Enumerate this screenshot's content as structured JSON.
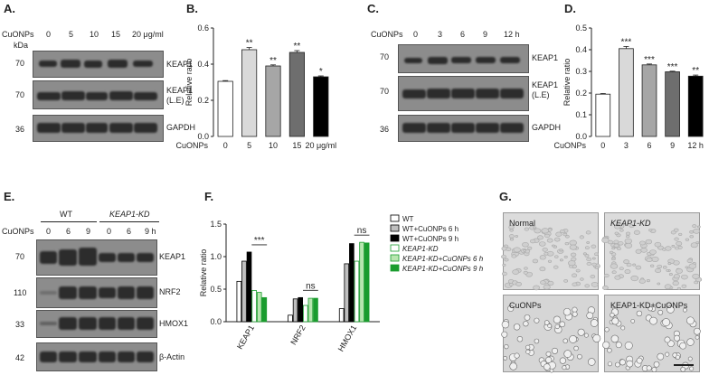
{
  "panels": {
    "A": {
      "label": "A.",
      "treatment": "CuONPs",
      "doses": [
        "0",
        "5",
        "10",
        "15",
        "20 μg/ml"
      ],
      "kda_unit": "kDa",
      "blots": [
        {
          "marker": "70",
          "name": "KEAP1"
        },
        {
          "marker": "70",
          "name": "KEAP1 (L.E)"
        },
        {
          "marker": "36",
          "name": "GAPDH"
        }
      ]
    },
    "B": {
      "label": "B."
    },
    "C": {
      "label": "C.",
      "treatment": "CuONPs",
      "doses": [
        "0",
        "3",
        "6",
        "9",
        "12 h"
      ],
      "blots": [
        {
          "marker": "70",
          "name": "KEAP1"
        },
        {
          "marker": "70",
          "name": "KEAP1 (L.E)"
        },
        {
          "marker": "36",
          "name": "GAPDH"
        }
      ]
    },
    "D": {
      "label": "D."
    },
    "E": {
      "label": "E.",
      "groups": [
        "WT",
        "KEAP1-KD"
      ],
      "treatment": "CuONPs",
      "doses": [
        "0",
        "6",
        "9",
        "0",
        "6",
        "9 h"
      ],
      "blots": [
        {
          "marker": "70",
          "name": "KEAP1"
        },
        {
          "marker": "110",
          "name": "NRF2"
        },
        {
          "marker": "33",
          "name": "HMOX1"
        },
        {
          "marker": "42",
          "name": "β-Actin"
        }
      ]
    },
    "F": {
      "label": "F."
    },
    "G": {
      "label": "G.",
      "images": [
        "Normal",
        "KEAP1-KD",
        "CuONPs",
        "KEAP1-KD+CuONPs"
      ]
    }
  },
  "chart_data": [
    {
      "panel": "B",
      "type": "bar",
      "categories": [
        "0",
        "5",
        "10",
        "15",
        "20 μg/ml"
      ],
      "x_prefix": "CuONPs",
      "values": [
        0.305,
        0.48,
        0.39,
        0.465,
        0.33
      ],
      "errors": [
        0.004,
        0.012,
        0.006,
        0.01,
        0.005
      ],
      "significance": [
        "",
        "**",
        "**",
        "**",
        "*"
      ],
      "colors": [
        "#ffffff",
        "#d9d9d9",
        "#a6a6a6",
        "#6e6e6e",
        "#000000"
      ],
      "ylabel": "Relative ratio",
      "ylim": [
        0.0,
        0.6
      ],
      "yticks": [
        "0.0",
        "0.2",
        "0.4",
        "0.6"
      ]
    },
    {
      "panel": "D",
      "type": "bar",
      "categories": [
        "0",
        "3",
        "6",
        "9",
        "12 h"
      ],
      "x_prefix": "CuONPs",
      "values": [
        0.195,
        0.405,
        0.33,
        0.298,
        0.278
      ],
      "errors": [
        0.003,
        0.01,
        0.004,
        0.003,
        0.005
      ],
      "significance": [
        "",
        "***",
        "***",
        "***",
        "**"
      ],
      "colors": [
        "#ffffff",
        "#d9d9d9",
        "#a6a6a6",
        "#6e6e6e",
        "#000000"
      ],
      "ylabel": "Relative ratio",
      "ylim": [
        0.0,
        0.5
      ],
      "yticks": [
        "0.0",
        "0.1",
        "0.2",
        "0.3",
        "0.4",
        "0.5"
      ]
    },
    {
      "panel": "F",
      "type": "bar",
      "categories": [
        "KEAP1",
        "NRF2",
        "HMOX1"
      ],
      "series": [
        {
          "name": "WT",
          "values": [
            0.62,
            0.1,
            0.2
          ],
          "color": "#ffffff",
          "edge": "#000000"
        },
        {
          "name": "WT+CuONPs 6 h",
          "values": [
            0.93,
            0.35,
            0.89
          ],
          "color": "#bfbfbf",
          "edge": "#000000"
        },
        {
          "name": "WT+CuONPs 9 h",
          "values": [
            1.07,
            0.37,
            1.2
          ],
          "color": "#000000",
          "edge": "#000000"
        },
        {
          "name": "KEAP1-KD",
          "values": [
            0.48,
            0.25,
            0.93
          ],
          "color": "#ffffff",
          "edge": "#1a9c2e"
        },
        {
          "name": "KEAP1-KD+CuONPs 6 h",
          "values": [
            0.45,
            0.36,
            1.22
          ],
          "color": "#b8e6b0",
          "edge": "#1a9c2e"
        },
        {
          "name": "KEAP1-KD+CuONPs 9 h",
          "values": [
            0.37,
            0.36,
            1.21
          ],
          "color": "#1a9c2e",
          "edge": "#1a9c2e"
        }
      ],
      "annotations": [
        "***",
        "ns",
        "ns"
      ],
      "ylabel": "Relative ratio",
      "ylim": [
        0.0,
        1.5
      ],
      "yticks": [
        "0.0",
        "0.5",
        "1.0",
        "1.5"
      ]
    }
  ]
}
